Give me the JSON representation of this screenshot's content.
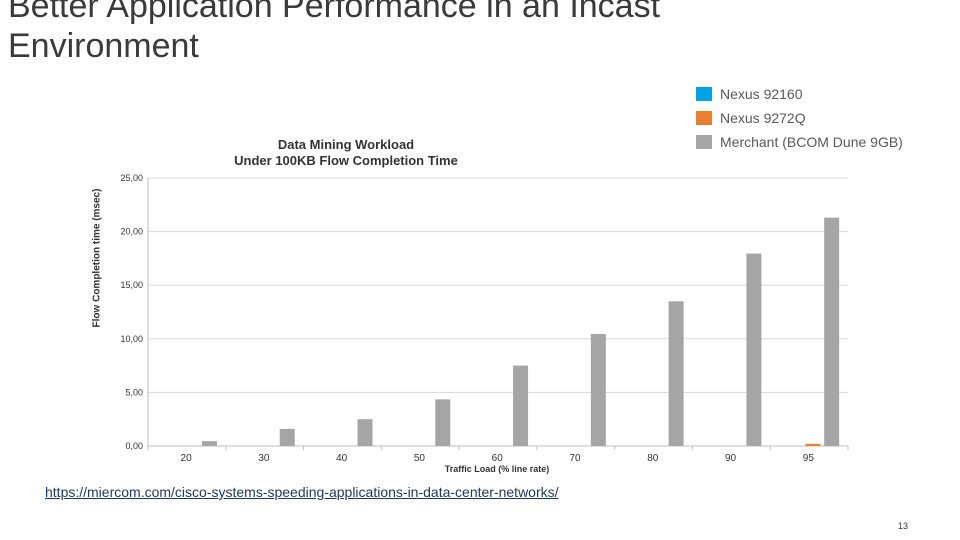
{
  "slide": {
    "title_line1": "Better Application Performance in an Incast",
    "title_line2": "Environment",
    "source_url": "https://miercom.com/cisco-systems-speeding-applications-in-data-center-networks/",
    "page_number": "13"
  },
  "legend": [
    {
      "label": "Nexus 92160",
      "color": "#00a2e8"
    },
    {
      "label": "Nexus 9272Q",
      "color": "#ed7d31"
    },
    {
      "label": "Merchant (BCOM Dune 9GB)",
      "color": "#a5a5a5"
    }
  ],
  "chart_data": {
    "type": "bar",
    "title_line1": "Data Mining Workload",
    "title_line2": "Under 100KB Flow Completion Time",
    "xlabel": "Traffic Load (% line rate)",
    "ylabel": "Flow Completion time (msec)",
    "categories": [
      "20",
      "30",
      "40",
      "50",
      "60",
      "70",
      "80",
      "90",
      "95"
    ],
    "ylim": [
      0,
      25
    ],
    "yticks": [
      "0,00",
      "5,00",
      "10,00",
      "15,00",
      "20,00",
      "25,00"
    ],
    "series": [
      {
        "name": "Nexus 92160",
        "color": "#00a2e8",
        "values": [
          0,
          0,
          0,
          0,
          0,
          0,
          0,
          0,
          0
        ]
      },
      {
        "name": "Nexus 9272Q",
        "color": "#ed7d31",
        "values": [
          0,
          0,
          0,
          0,
          0,
          0,
          0,
          0,
          0.2
        ]
      },
      {
        "name": "Merchant (BCOM Dune 9GB)",
        "color": "#a5a5a5",
        "values": [
          0.45,
          1.6,
          2.5,
          4.35,
          7.5,
          10.45,
          13.5,
          17.95,
          21.3
        ]
      }
    ]
  }
}
